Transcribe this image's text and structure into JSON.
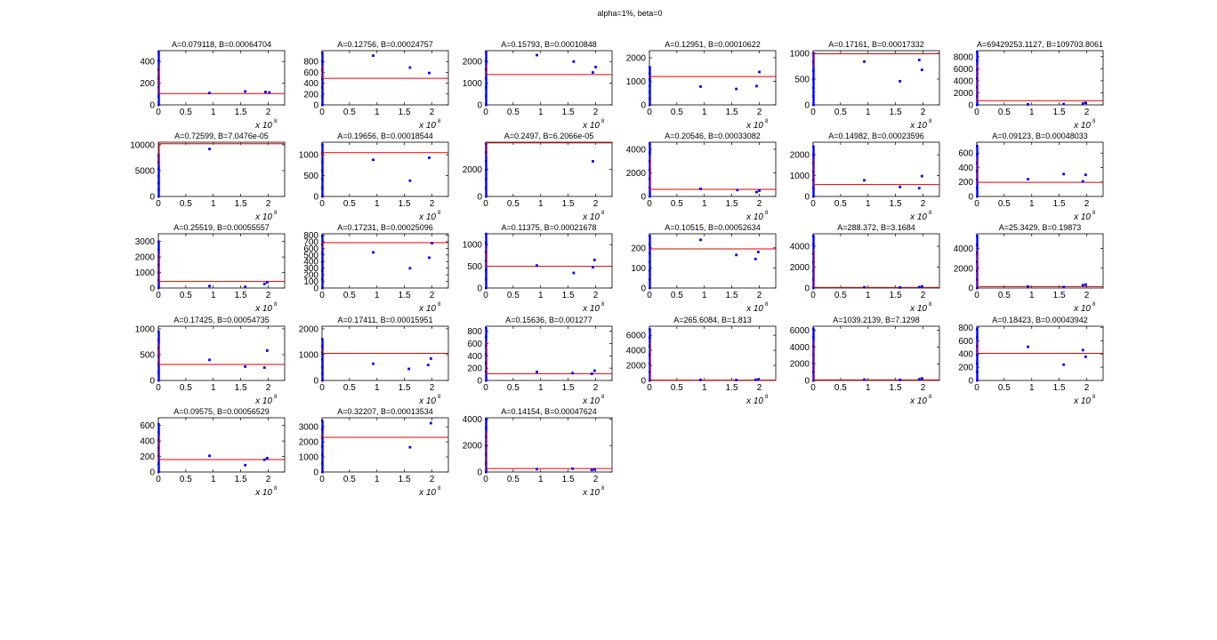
{
  "figure": {
    "title": "alpha=1%, beta=0"
  },
  "chart_data": [
    {
      "type": "scatter",
      "title": "A=0.079118, B=0.00064704",
      "xlim": [
        0,
        2.3
      ],
      "ylim": [
        0,
        500
      ],
      "yticks": [
        0,
        200,
        400
      ],
      "xticks": [
        0,
        0.5,
        1,
        1.5,
        2
      ],
      "x_multiplier": "x 10",
      "x_exponent": "8",
      "fit_y": 105,
      "stack_top": 490,
      "x": [
        0.93,
        1.58,
        1.95,
        2.02
      ],
      "y": [
        110,
        125,
        120,
        115
      ]
    },
    {
      "type": "scatter",
      "title": "A=0.12756, B=0.00024757",
      "xlim": [
        0,
        2.3
      ],
      "ylim": [
        0,
        1000
      ],
      "yticks": [
        0,
        200,
        400,
        600,
        800
      ],
      "xticks": [
        0,
        0.5,
        1,
        1.5,
        2
      ],
      "x_multiplier": "x 10",
      "x_exponent": "8",
      "fit_y": 490,
      "stack_top": 960,
      "x": [
        0.93,
        1.6,
        1.95
      ],
      "y": [
        910,
        690,
        590
      ]
    },
    {
      "type": "scatter",
      "title": "A=0.15793, B=0.00010848",
      "xlim": [
        0,
        2.3
      ],
      "ylim": [
        0,
        2500
      ],
      "yticks": [
        0,
        1000,
        2000
      ],
      "xticks": [
        0,
        0.5,
        1,
        1.5,
        2
      ],
      "x_multiplier": "x 10",
      "x_exponent": "8",
      "fit_y": 1400,
      "stack_top": 2450,
      "x": [
        0.93,
        1.6,
        1.95,
        2.0
      ],
      "y": [
        2300,
        2000,
        1500,
        1750
      ]
    },
    {
      "type": "scatter",
      "title": "A=0.12951, B=0.00010622",
      "xlim": [
        0,
        2.3
      ],
      "ylim": [
        0,
        2300
      ],
      "yticks": [
        0,
        1000,
        2000
      ],
      "xticks": [
        0,
        0.5,
        1,
        1.5,
        2
      ],
      "x_multiplier": "x 10",
      "x_exponent": "8",
      "fit_y": 1200,
      "stack_top": 1600,
      "x": [
        0.93,
        1.58,
        1.95,
        2.0
      ],
      "y": [
        780,
        680,
        800,
        1400
      ]
    },
    {
      "type": "scatter",
      "title": "A=0.17161, B=0.00017332",
      "xlim": [
        0,
        2.3
      ],
      "ylim": [
        0,
        1050
      ],
      "yticks": [
        0,
        500,
        1000
      ],
      "xticks": [
        0,
        0.5,
        1,
        1.5,
        2
      ],
      "x_multiplier": "x 10",
      "x_exponent": "8",
      "fit_y": 990,
      "stack_top": 1000,
      "x": [
        0.93,
        1.58,
        1.93,
        1.98
      ],
      "y": [
        840,
        460,
        870,
        680
      ]
    },
    {
      "type": "scatter",
      "title": "A=69429253.1127, B=109703.8061",
      "xlim": [
        0,
        2.3
      ],
      "ylim": [
        0,
        9000
      ],
      "yticks": [
        0,
        2000,
        4000,
        6000,
        8000
      ],
      "xticks": [
        0,
        0.5,
        1,
        1.5,
        2
      ],
      "x_multiplier": "x 10",
      "x_exponent": "8",
      "fit_y": 700,
      "stack_top": 8800,
      "x": [
        0.93,
        1.58,
        1.93,
        1.98
      ],
      "y": [
        100,
        150,
        250,
        350
      ]
    },
    {
      "type": "scatter",
      "title": "A=0.72599, B=7.0476e-05",
      "xlim": [
        0,
        2.3
      ],
      "ylim": [
        0,
        10500
      ],
      "yticks": [
        0,
        5000,
        10000
      ],
      "xticks": [
        0,
        0.5,
        1,
        1.5,
        2
      ],
      "x_multiplier": "x 10",
      "x_exponent": "8",
      "fit_y": 10200,
      "stack_top": 8000,
      "x": [
        0.93
      ],
      "y": [
        9200
      ]
    },
    {
      "type": "scatter",
      "title": "A=0.19656, B=0.00018544",
      "xlim": [
        0,
        2.3
      ],
      "ylim": [
        0,
        1300
      ],
      "yticks": [
        0,
        500,
        1000
      ],
      "xticks": [
        0,
        0.5,
        1,
        1.5,
        2
      ],
      "x_multiplier": "x 10",
      "x_exponent": "8",
      "fit_y": 1050,
      "stack_top": 1250,
      "x": [
        0.93,
        1.6,
        1.95
      ],
      "y": [
        880,
        380,
        930
      ]
    },
    {
      "type": "scatter",
      "title": "A=0.2497, B=6.2066e-05",
      "xlim": [
        0,
        2.3
      ],
      "ylim": [
        0,
        4000
      ],
      "yticks": [
        0,
        2000
      ],
      "xticks": [
        0,
        0.5,
        1,
        1.5,
        2
      ],
      "x_multiplier": "x 10",
      "x_exponent": "8",
      "fit_y": 3950,
      "stack_top": 3900,
      "x": [
        1.95
      ],
      "y": [
        2600
      ]
    },
    {
      "type": "scatter",
      "title": "A=0.20546, B=0.00033082",
      "xlim": [
        0,
        2.3
      ],
      "ylim": [
        0,
        4600
      ],
      "yticks": [
        0,
        2000,
        4000
      ],
      "xticks": [
        0,
        0.5,
        1,
        1.5,
        2
      ],
      "x_multiplier": "x 10",
      "x_exponent": "8",
      "fit_y": 600,
      "stack_top": 4500,
      "x": [
        0.93,
        1.6,
        1.95,
        2.0
      ],
      "y": [
        650,
        550,
        380,
        500
      ]
    },
    {
      "type": "scatter",
      "title": "A=0.14982, B=0.00023596",
      "xlim": [
        0,
        2.3
      ],
      "ylim": [
        0,
        2600
      ],
      "yticks": [
        0,
        1000,
        2000
      ],
      "xticks": [
        0,
        0.5,
        1,
        1.5,
        2
      ],
      "x_multiplier": "x 10",
      "x_exponent": "8",
      "fit_y": 570,
      "stack_top": 2400,
      "x": [
        0.93,
        1.58,
        1.93,
        1.98
      ],
      "y": [
        780,
        460,
        400,
        980
      ]
    },
    {
      "type": "scatter",
      "title": "A=0.09123, B=0.00048033",
      "xlim": [
        0,
        2.3
      ],
      "ylim": [
        0,
        750
      ],
      "yticks": [
        0,
        200,
        400,
        600
      ],
      "xticks": [
        0,
        0.5,
        1,
        1.5,
        2
      ],
      "x_multiplier": "x 10",
      "x_exponent": "8",
      "fit_y": 195,
      "stack_top": 700,
      "x": [
        0.93,
        1.58,
        1.93,
        1.98
      ],
      "y": [
        240,
        310,
        210,
        300
      ]
    },
    {
      "type": "scatter",
      "title": "A=0.25519, B=0.00055557",
      "xlim": [
        0,
        2.3
      ],
      "ylim": [
        0,
        3500
      ],
      "yticks": [
        0,
        1000,
        2000,
        3000
      ],
      "xticks": [
        0,
        0.5,
        1,
        1.5,
        2
      ],
      "x_multiplier": "x 10",
      "x_exponent": "8",
      "fit_y": 420,
      "stack_top": 3000,
      "x": [
        0.93,
        1.58,
        1.93,
        1.98
      ],
      "y": [
        130,
        80,
        270,
        370
      ]
    },
    {
      "type": "scatter",
      "title": "A=0.17231, B=0.00025096",
      "xlim": [
        0,
        2.3
      ],
      "ylim": [
        0,
        820
      ],
      "yticks": [
        0,
        100,
        200,
        300,
        400,
        500,
        600,
        700,
        800
      ],
      "xticks": [
        0,
        0.5,
        1,
        1.5,
        2
      ],
      "x_multiplier": "x 10",
      "x_exponent": "8",
      "fit_y": 685,
      "stack_top": 790,
      "x": [
        0.93,
        1.6,
        1.95,
        2.0
      ],
      "y": [
        540,
        300,
        460,
        680
      ]
    },
    {
      "type": "scatter",
      "title": "A=0.11375, B=0.00021678",
      "xlim": [
        0,
        2.3
      ],
      "ylim": [
        0,
        1250
      ],
      "yticks": [
        0,
        500,
        1000
      ],
      "xticks": [
        0,
        0.5,
        1,
        1.5,
        2
      ],
      "x_multiplier": "x 10",
      "x_exponent": "8",
      "fit_y": 500,
      "stack_top": 1250,
      "x": [
        0.93,
        1.6,
        1.95,
        1.98
      ],
      "y": [
        520,
        350,
        480,
        650
      ]
    },
    {
      "type": "scatter",
      "title": "A=0.10515, B=0.00052634",
      "xlim": [
        0,
        2.3
      ],
      "ylim": [
        0,
        270
      ],
      "yticks": [
        0,
        100,
        200
      ],
      "xticks": [
        0,
        0.5,
        1,
        1.5,
        2
      ],
      "x_multiplier": "x 10",
      "x_exponent": "8",
      "fit_y": 195,
      "stack_top": 260,
      "x": [
        0.93,
        1.58,
        1.93,
        1.98
      ],
      "y": [
        240,
        165,
        145,
        180
      ]
    },
    {
      "type": "scatter",
      "title": "A=288.372, B=3.1684",
      "xlim": [
        0,
        2.3
      ],
      "ylim": [
        0,
        5200
      ],
      "yticks": [
        0,
        2000,
        4000
      ],
      "xticks": [
        0,
        0.5,
        1,
        1.5,
        2
      ],
      "x_multiplier": "x 10",
      "x_exponent": "8",
      "fit_y": 50,
      "stack_top": 5000,
      "x": [
        0.93,
        1.58,
        1.93,
        1.98
      ],
      "y": [
        80,
        60,
        100,
        150
      ]
    },
    {
      "type": "scatter",
      "title": "A=25.3429, B=0.19873",
      "xlim": [
        0,
        2.3
      ],
      "ylim": [
        0,
        5500
      ],
      "yticks": [
        0,
        2000,
        4000
      ],
      "xticks": [
        0,
        0.5,
        1,
        1.5,
        2
      ],
      "x_multiplier": "x 10",
      "x_exponent": "8",
      "fit_y": 150,
      "stack_top": 5300,
      "x": [
        0.93,
        1.58,
        1.93,
        1.98
      ],
      "y": [
        150,
        100,
        300,
        350
      ]
    },
    {
      "type": "scatter",
      "title": "A=0.17425, B=0.00054735",
      "xlim": [
        0,
        2.3
      ],
      "ylim": [
        0,
        1050
      ],
      "yticks": [
        0,
        500,
        1000
      ],
      "xticks": [
        0,
        0.5,
        1,
        1.5,
        2
      ],
      "x_multiplier": "x 10",
      "x_exponent": "8",
      "fit_y": 310,
      "stack_top": 950,
      "x": [
        0.93,
        1.58,
        1.93,
        1.98
      ],
      "y": [
        400,
        270,
        250,
        580
      ]
    },
    {
      "type": "scatter",
      "title": "A=0.17411, B=0.00015951",
      "xlim": [
        0,
        2.3
      ],
      "ylim": [
        0,
        2100
      ],
      "yticks": [
        0,
        1000,
        2000
      ],
      "xticks": [
        0,
        0.5,
        1,
        1.5,
        2
      ],
      "x_multiplier": "x 10",
      "x_exponent": "8",
      "fit_y": 1050,
      "stack_top": 1600,
      "x": [
        0.93,
        1.58,
        1.93,
        1.98
      ],
      "y": [
        650,
        450,
        600,
        850
      ]
    },
    {
      "type": "scatter",
      "title": "A=0.15636, B=0.001277",
      "xlim": [
        0,
        2.3
      ],
      "ylim": [
        0,
        880
      ],
      "yticks": [
        0,
        200,
        400,
        600,
        800
      ],
      "xticks": [
        0,
        0.5,
        1,
        1.5,
        2
      ],
      "x_multiplier": "x 10",
      "x_exponent": "8",
      "fit_y": 110,
      "stack_top": 850,
      "x": [
        0.93,
        1.58,
        1.93,
        1.98
      ],
      "y": [
        140,
        120,
        110,
        160
      ]
    },
    {
      "type": "scatter",
      "title": "A=265.6084, B=1.813",
      "xlim": [
        0,
        2.3
      ],
      "ylim": [
        0,
        7200
      ],
      "yticks": [
        0,
        2000,
        4000,
        6000
      ],
      "xticks": [
        0,
        0.5,
        1,
        1.5,
        2
      ],
      "x_multiplier": "x 10",
      "x_exponent": "8",
      "fit_y": 50,
      "stack_top": 6800,
      "x": [
        0.93,
        1.58,
        1.93,
        1.98
      ],
      "y": [
        80,
        60,
        100,
        150
      ]
    },
    {
      "type": "scatter",
      "title": "A=1039.2139, B=7.1298",
      "xlim": [
        0,
        2.3
      ],
      "ylim": [
        0,
        6500
      ],
      "yticks": [
        0,
        2000,
        4000,
        6000
      ],
      "xticks": [
        0,
        0.5,
        1,
        1.5,
        2
      ],
      "x_multiplier": "x 10",
      "x_exponent": "8",
      "fit_y": 60,
      "stack_top": 6200,
      "x": [
        0.93,
        1.58,
        1.93,
        1.98
      ],
      "y": [
        100,
        80,
        150,
        250
      ]
    },
    {
      "type": "scatter",
      "title": "A=0.18423, B=0.00043942",
      "xlim": [
        0,
        2.3
      ],
      "ylim": [
        0,
        820
      ],
      "yticks": [
        0,
        200,
        400,
        600,
        800
      ],
      "xticks": [
        0,
        0.5,
        1,
        1.5,
        2
      ],
      "x_multiplier": "x 10",
      "x_exponent": "8",
      "fit_y": 410,
      "stack_top": 780,
      "x": [
        0.93,
        1.58,
        1.93,
        1.98
      ],
      "y": [
        510,
        240,
        460,
        360
      ]
    },
    {
      "type": "scatter",
      "title": "A=0.09575, B=0.00056529",
      "xlim": [
        0,
        2.3
      ],
      "ylim": [
        0,
        700
      ],
      "yticks": [
        0,
        200,
        400,
        600
      ],
      "xticks": [
        0,
        0.5,
        1,
        1.5,
        2
      ],
      "x_multiplier": "x 10",
      "x_exponent": "8",
      "fit_y": 160,
      "stack_top": 620,
      "x": [
        0.93,
        1.58,
        1.93,
        1.98
      ],
      "y": [
        210,
        90,
        160,
        180
      ]
    },
    {
      "type": "scatter",
      "title": "A=0.32207, B=0.00013534",
      "xlim": [
        0,
        2.3
      ],
      "ylim": [
        0,
        3600
      ],
      "yticks": [
        0,
        1000,
        2000,
        3000
      ],
      "xticks": [
        0,
        0.5,
        1,
        1.5,
        2
      ],
      "x_multiplier": "x 10",
      "x_exponent": "8",
      "fit_y": 2300,
      "stack_top": 3400,
      "x": [
        1.6,
        1.98
      ],
      "y": [
        1650,
        3250
      ]
    },
    {
      "type": "scatter",
      "title": "A=0.14154, B=0.00047624",
      "xlim": [
        0,
        2.3
      ],
      "ylim": [
        0,
        4100
      ],
      "yticks": [
        0,
        2000,
        4000
      ],
      "xticks": [
        0,
        0.5,
        1,
        1.5,
        2
      ],
      "x_multiplier": "x 10",
      "x_exponent": "8",
      "fit_y": 260,
      "stack_top": 4000,
      "x": [
        0.93,
        1.58,
        1.93,
        1.98
      ],
      "y": [
        220,
        260,
        160,
        200
      ]
    }
  ]
}
